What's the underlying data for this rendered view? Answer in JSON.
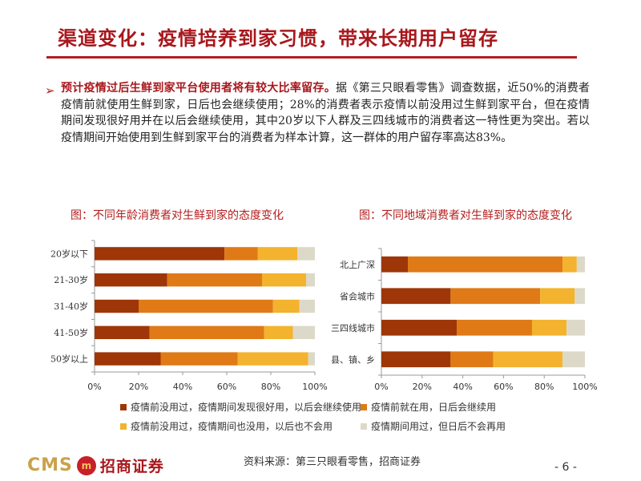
{
  "page": {
    "title": "渠道变化：疫情培养到家习惯，带来长期用户留存",
    "bullet_mark": "➢",
    "para_lead": "预计疫情过后生鲜到家平台使用者将有较大比率留存。",
    "para_body": "据《第三只眼看零售》调查数据，近50%的消费者疫情前就使用生鲜到家，日后也会继续使用；28%的消费者表示疫情以前没用过生鲜到家平台，但在疫情期间发现很好用并在以后会继续使用，其中20岁以下人群及三四线城市的消费者这一特性更为突出。若以疫情期间开始使用到生鲜到家平台的消费者为样本计算，这一群体的用户留存率高达83%。",
    "source": "资料来源：第三只眼看零售，招商证券",
    "page_number": "- 6 -",
    "logo_text": "CMS",
    "logo_badge": "m",
    "logo_cn": "招商证券"
  },
  "colors": {
    "s1": "#9e3608",
    "s2": "#e07a16",
    "s3": "#f3b32e",
    "s4": "#ddd9c8"
  },
  "legend": [
    {
      "label": "疫情前没用过，疫情期间发现很好用，以后会继续使用",
      "color": "#9e3608"
    },
    {
      "label": "疫情前就在用，日后会继续用",
      "color": "#e07a16"
    },
    {
      "label": "疫情前没用过，疫情期间也没用，以后也不会用",
      "color": "#f3b32e"
    },
    {
      "label": "疫情期间用过，但日后不会再用",
      "color": "#ddd9c8"
    }
  ],
  "chart_data": [
    {
      "type": "bar",
      "orientation": "horizontal",
      "stacked": true,
      "title": "图：不同年龄消费者对生鲜到家的态度变化",
      "categories": [
        "20岁以下",
        "21-30岁",
        "31-40岁",
        "41-50岁",
        "50岁以上"
      ],
      "xlim": [
        0,
        100
      ],
      "x_ticks": [
        "0%",
        "20%",
        "40%",
        "60%",
        "80%",
        "100%"
      ],
      "series": [
        {
          "name": "疫情前没用过，疫情期间发现很好用，以后会继续使用",
          "values": [
            59,
            33,
            20,
            25,
            30
          ]
        },
        {
          "name": "疫情前就在用，日后会继续用",
          "values": [
            15,
            43,
            61,
            52,
            35
          ]
        },
        {
          "name": "疫情前没用过，疫情期间也没用，以后也不会用",
          "values": [
            18,
            20,
            12,
            13,
            32
          ]
        },
        {
          "name": "疫情期间用过，但日后不会再用",
          "values": [
            8,
            4,
            7,
            10,
            3
          ]
        }
      ]
    },
    {
      "type": "bar",
      "orientation": "horizontal",
      "stacked": true,
      "title": "图：不同地域消费者对生鲜到家的态度变化",
      "categories": [
        "北上广深",
        "省会城市",
        "三四线城市",
        "县、镇、乡"
      ],
      "xlim": [
        0,
        100
      ],
      "x_ticks": [
        "0%",
        "20%",
        "40%",
        "60%",
        "80%",
        "100%"
      ],
      "series": [
        {
          "name": "疫情前没用过，疫情期间发现很好用，以后会继续使用",
          "values": [
            13,
            34,
            37,
            34
          ]
        },
        {
          "name": "疫情前就在用，日后会继续用",
          "values": [
            76,
            44,
            37,
            21
          ]
        },
        {
          "name": "疫情前没用过，疫情期间也没用，以后也不会用",
          "values": [
            7,
            17,
            17,
            34
          ]
        },
        {
          "name": "疫情期间用过，但日后不会再用",
          "values": [
            4,
            5,
            9,
            11
          ]
        }
      ]
    }
  ]
}
